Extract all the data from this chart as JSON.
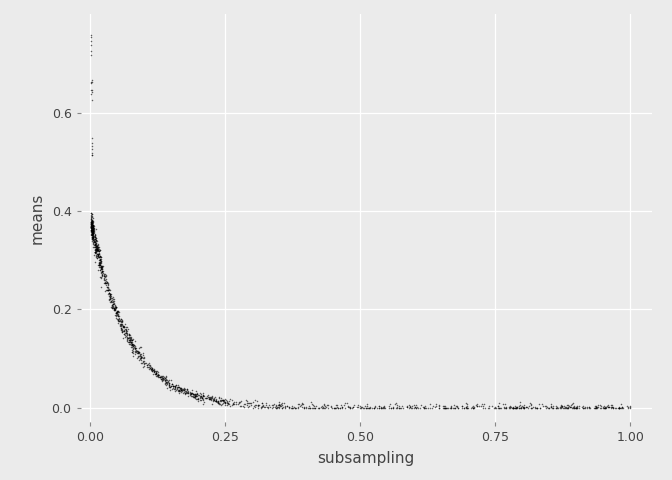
{
  "xlabel": "subsampling",
  "ylabel": "means",
  "background_color": "#EBEBEB",
  "point_color": "#000000",
  "point_size": 1.2,
  "point_alpha": 0.6,
  "xlim": [
    -0.018,
    1.04
  ],
  "ylim": [
    -0.03,
    0.8
  ],
  "xticks": [
    0.0,
    0.25,
    0.5,
    0.75,
    1.0
  ],
  "xtick_labels": [
    "0.00",
    "0.25",
    "0.50",
    "0.75",
    "1.00"
  ],
  "yticks": [
    0.0,
    0.2,
    0.4,
    0.6
  ],
  "ytick_labels": [
    "0.0",
    "0.2",
    "0.4",
    "0.6"
  ],
  "grid_color": "#FFFFFF",
  "grid_linewidth": 0.9,
  "figsize": [
    6.72,
    4.8
  ],
  "dpi": 100,
  "decay_a": 0.38,
  "decay_b": 14.0,
  "label_fontsize": 11,
  "tick_fontsize": 9
}
